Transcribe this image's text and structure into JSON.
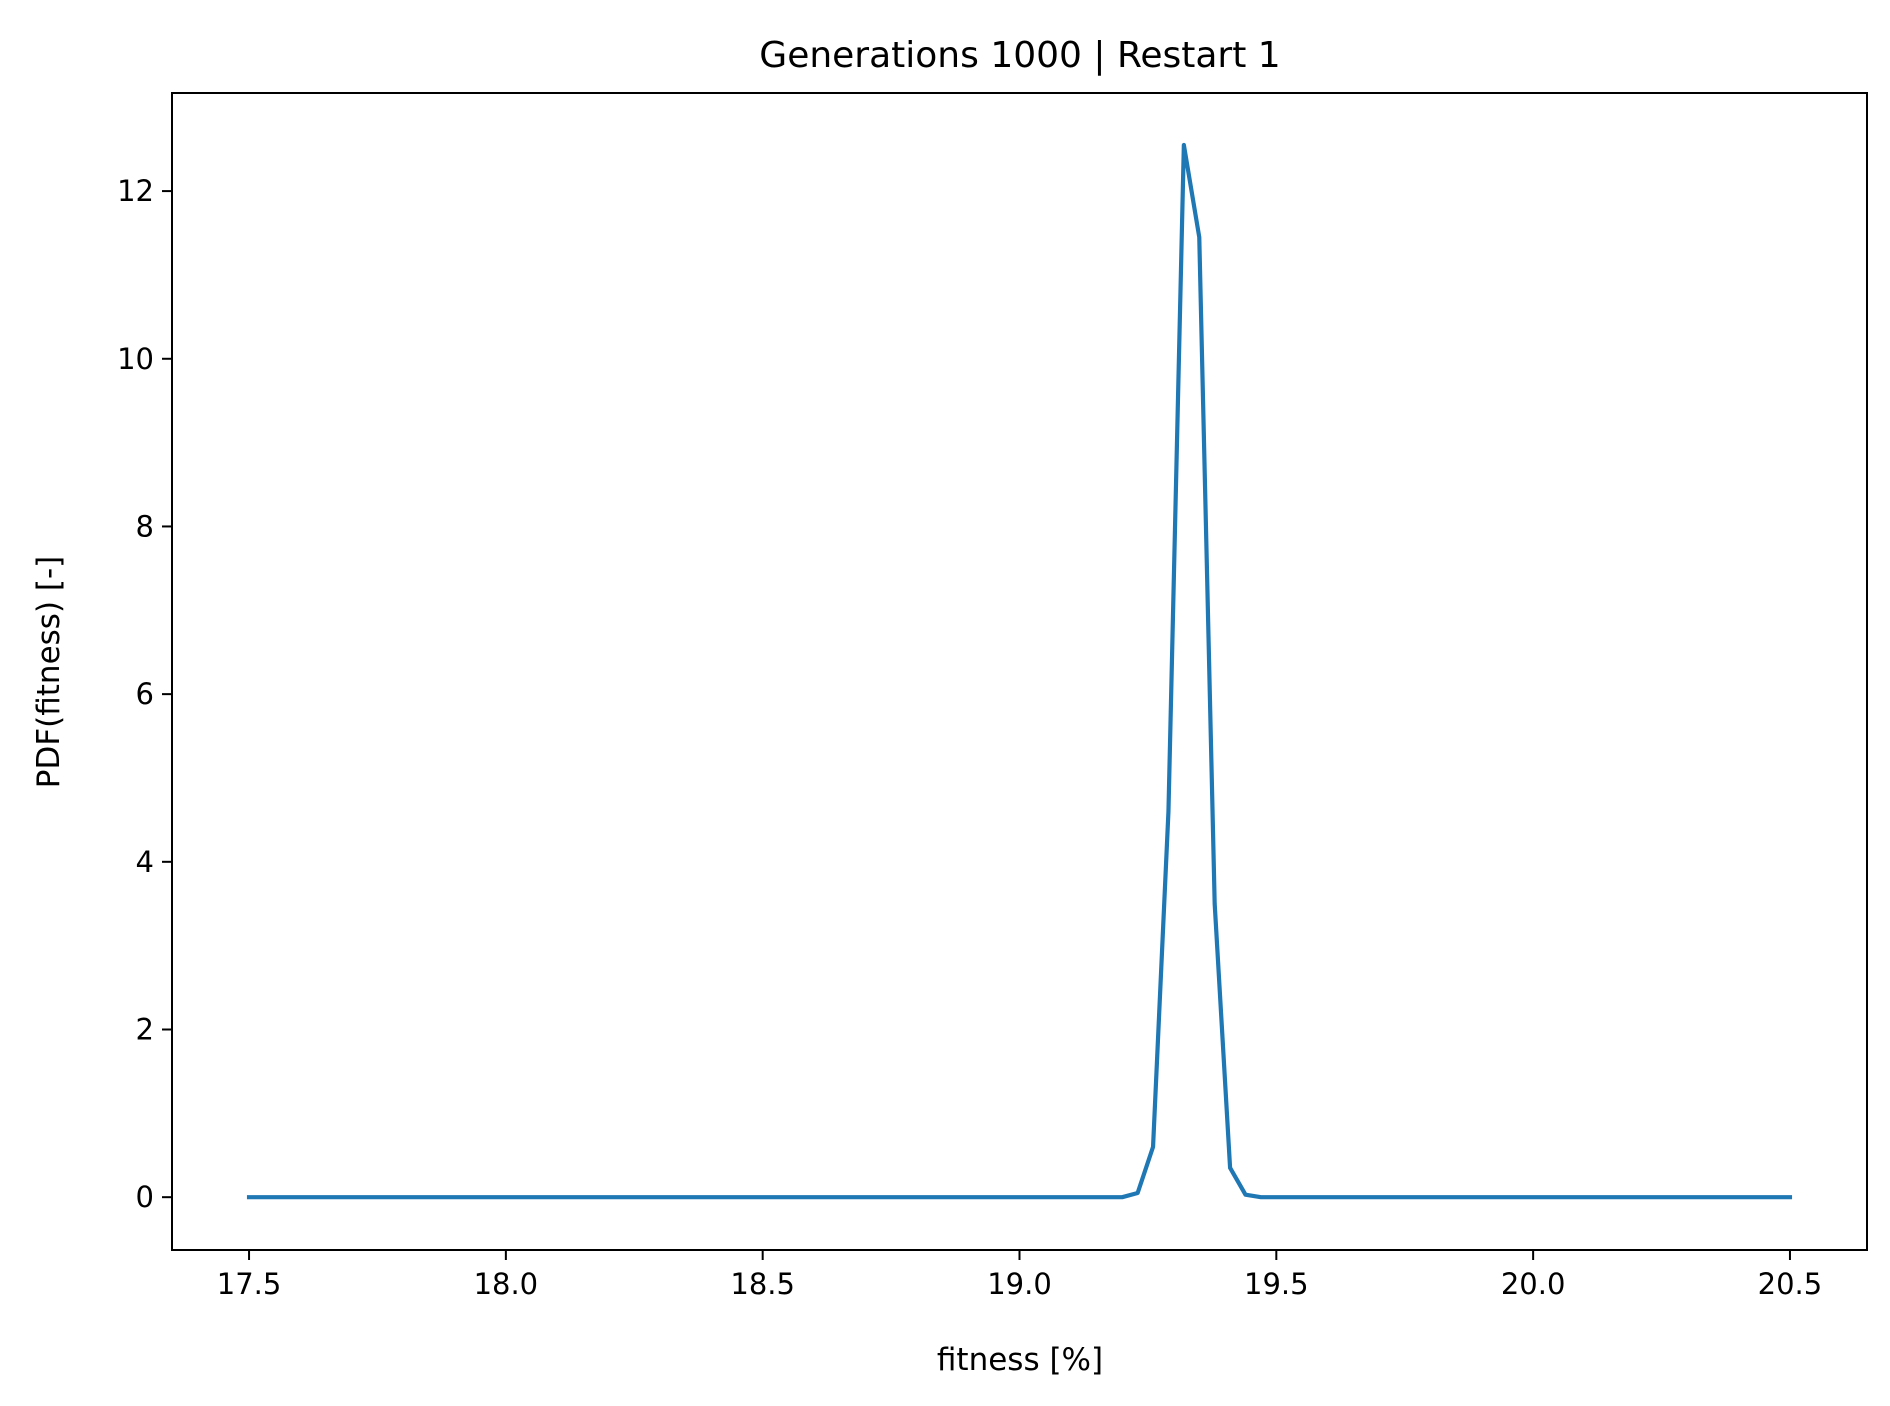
{
  "chart_data": {
    "type": "line",
    "title": "Generations 1000 | Restart 1",
    "xlabel": "fitness [%]",
    "ylabel": "PDF(fitness) [-]",
    "xlim": [
      17.35,
      20.65
    ],
    "ylim": [
      -0.63,
      13.17
    ],
    "xticks": [
      17.5,
      18.0,
      18.5,
      19.0,
      19.5,
      20.0,
      20.5
    ],
    "xtick_labels": [
      "17.5",
      "18.0",
      "18.5",
      "19.0",
      "19.5",
      "20.0",
      "20.5"
    ],
    "yticks": [
      0,
      2,
      4,
      6,
      8,
      10,
      12
    ],
    "ytick_labels": [
      "0",
      "2",
      "4",
      "6",
      "8",
      "10",
      "12"
    ],
    "grid": false,
    "series": [
      {
        "color": "#1f77b4",
        "x": [
          17.5,
          19.2,
          19.23,
          19.26,
          19.29,
          19.32,
          19.35,
          19.38,
          19.41,
          19.44,
          19.47,
          19.5,
          20.5
        ],
        "y": [
          0,
          0,
          0.05,
          0.6,
          4.6,
          12.55,
          11.45,
          3.5,
          0.35,
          0.03,
          0,
          0,
          0
        ]
      }
    ]
  }
}
